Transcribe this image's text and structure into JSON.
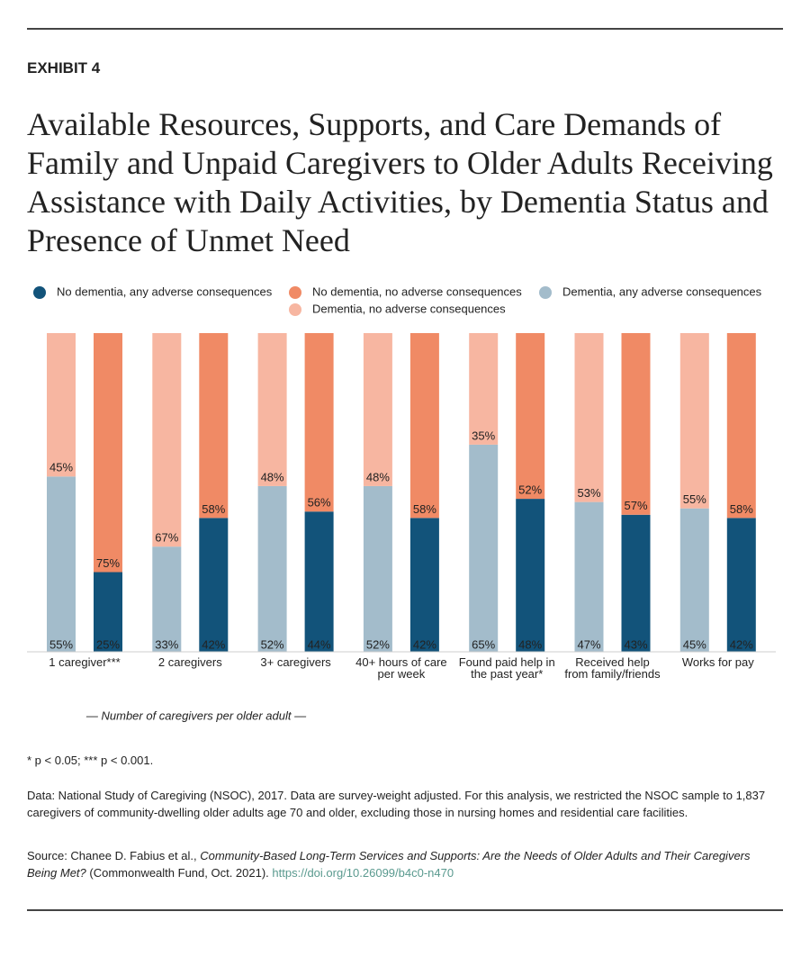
{
  "exhibit": "EXHIBIT 4",
  "chart_data": {
    "type": "bar",
    "title": "Available Resources, Supports, and Care Demands of Family and Unpaid Caregivers to Older Adults Receiving Assistance with Daily Activities, by Dementia Status and Presence of Unmet Need",
    "categories": [
      [
        "1 caregiver***"
      ],
      [
        "2 caregivers"
      ],
      [
        "3+ caregivers"
      ],
      [
        "40+ hours of care",
        "per week"
      ],
      [
        "Found paid help in",
        "the past year*"
      ],
      [
        "Received help",
        "from family/friends"
      ],
      [
        "Works for pay"
      ]
    ],
    "axis_note": "— Number of caregivers per older adult —",
    "series": [
      {
        "name": "No dementia, any adverse consequences",
        "color": "#12537a",
        "values": [
          25,
          42,
          44,
          42,
          48,
          43,
          42
        ],
        "value_labels": [
          "25%",
          "42%",
          "44%",
          "42%",
          "48%",
          "43%",
          "42%"
        ]
      },
      {
        "name": "No dementia, no adverse consequences",
        "color": "#f08a65",
        "values": [
          75,
          58,
          56,
          58,
          52,
          57,
          58
        ],
        "value_labels": [
          "75%",
          "58%",
          "56%",
          "58%",
          "52%",
          "57%",
          "58%"
        ]
      },
      {
        "name": "Dementia, any adverse consequences",
        "color": "#a3bccb",
        "values": [
          55,
          33,
          52,
          52,
          65,
          47,
          45
        ],
        "value_labels": [
          "55%",
          "33%",
          "52%",
          "52%",
          "65%",
          "47%",
          "45%"
        ]
      },
      {
        "name": "Dementia, no adverse consequences",
        "color": "#f7b6a1",
        "values": [
          45,
          67,
          48,
          48,
          35,
          53,
          55
        ],
        "value_labels": [
          "45%",
          "67%",
          "48%",
          "48%",
          "35%",
          "53%",
          "55%"
        ]
      }
    ]
  },
  "notes": {
    "significance": "* p < 0.05; *** p < 0.001.",
    "data": "Data: National Study of Caregiving (NSOC), 2017. Data are survey-weight adjusted. For this analysis, we restricted the NSOC sample to 1,837 caregivers of community-dwelling older adults age 70 and older, excluding those in nursing homes and residential care facilities.",
    "source_prefix": "Source: Chanee D. Fabius et al., ",
    "source_title": "Community-Based Long-Term Services and Supports: Are the Needs of Older Adults and Their Caregivers Being Met?",
    "source_suffix": " (Commonwealth Fund, Oct. 2021). ",
    "source_link": "https://doi.org/10.26099/b4c0-n470"
  }
}
